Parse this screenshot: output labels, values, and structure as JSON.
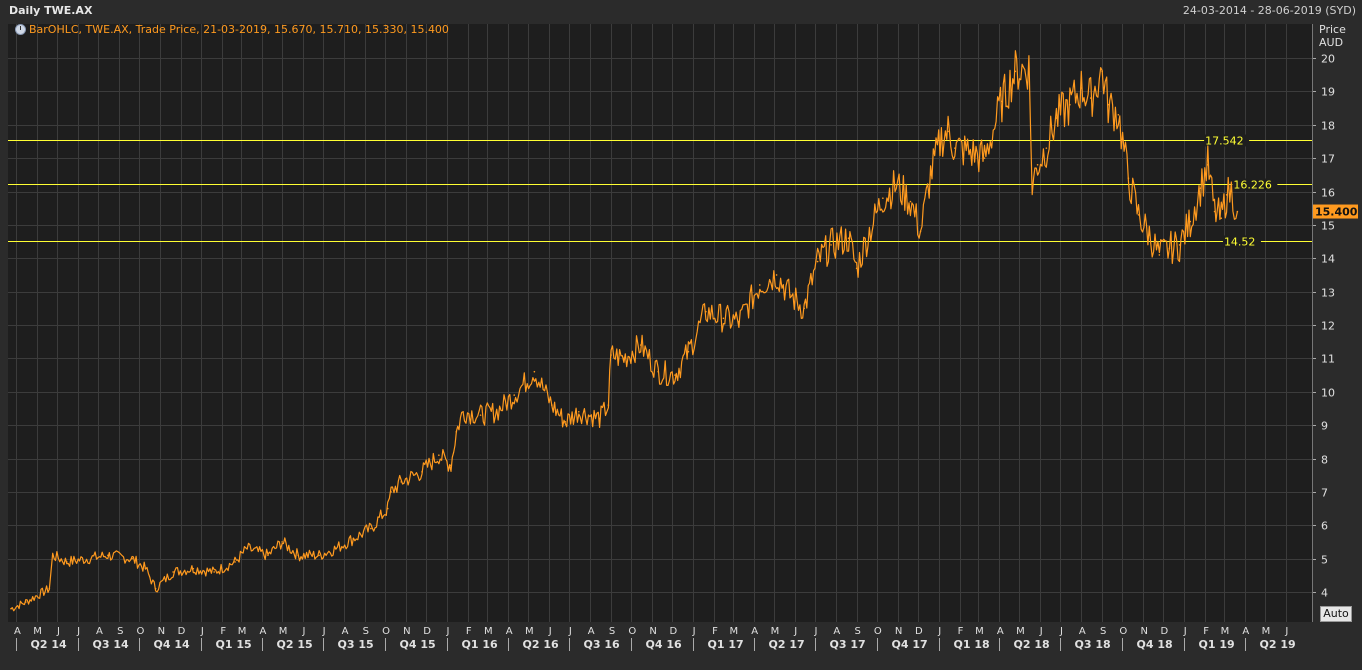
{
  "header": {
    "title": "Daily TWE.AX",
    "date_range": "24-03-2014 - 28-06-2019 (SYD)"
  },
  "legend": {
    "text": "BarOHLC, TWE.AX, Trade Price,  21-03-2019,  15.670,  15.710,  15.330,  15.400",
    "icon": "clock-icon"
  },
  "axis": {
    "price_label": "Price",
    "currency_label": "AUD",
    "auto_button": "Auto"
  },
  "colors": {
    "background": "#1e1e1e",
    "grid": "#3c3c3c",
    "series": "#ff9a1f",
    "hline": "#ffff33",
    "last_price_bg": "#ff9a1f"
  },
  "chart_data": {
    "type": "line",
    "title": "Daily TWE.AX",
    "series": [
      {
        "name": "TWE.AX",
        "x": [
          "2014-03-24",
          "2014-04-15",
          "2014-05-20",
          "2014-05-25",
          "2014-06-15",
          "2014-08-15",
          "2014-09-20",
          "2014-10-10",
          "2014-10-25",
          "2014-11-20",
          "2014-12-20",
          "2015-01-20",
          "2015-02-20",
          "2015-03-10",
          "2015-04-10",
          "2015-05-01",
          "2015-05-25",
          "2015-06-25",
          "2015-07-20",
          "2015-08-15",
          "2015-09-10",
          "2015-10-05",
          "2015-10-10",
          "2015-10-25",
          "2015-11-25",
          "2015-12-20",
          "2016-01-07",
          "2016-01-15",
          "2016-01-25",
          "2016-02-20",
          "2016-03-15",
          "2016-04-10",
          "2016-05-10",
          "2016-06-05",
          "2016-06-25",
          "2016-07-15",
          "2016-08-15",
          "2016-08-28",
          "2016-09-01",
          "2016-09-20",
          "2016-10-15",
          "2016-11-10",
          "2016-12-05",
          "2016-12-25",
          "2017-01-20",
          "2017-02-15",
          "2017-03-10",
          "2017-04-10",
          "2017-05-05",
          "2017-05-25",
          "2017-06-15",
          "2017-07-05",
          "2017-07-25",
          "2017-08-20",
          "2017-09-01",
          "2017-09-20",
          "2017-10-10",
          "2017-10-30",
          "2017-11-20",
          "2017-12-05",
          "2017-12-20",
          "2018-01-05",
          "2018-01-15",
          "2018-01-25",
          "2018-02-15",
          "2018-03-10",
          "2018-04-05",
          "2018-04-25",
          "2018-05-15",
          "2018-05-20",
          "2018-05-28",
          "2018-06-10",
          "2018-06-25",
          "2018-07-15",
          "2018-08-01",
          "2018-08-15",
          "2018-09-01",
          "2018-09-10",
          "2018-09-25",
          "2018-10-10",
          "2018-10-25",
          "2018-11-10",
          "2018-11-25",
          "2018-12-10",
          "2018-12-25",
          "2019-01-10",
          "2019-01-25",
          "2019-02-05",
          "2019-02-15",
          "2019-02-25",
          "2019-03-05",
          "2019-03-12",
          "2019-03-21"
        ],
        "y": [
          3.5,
          3.7,
          4.1,
          5.1,
          4.9,
          5.1,
          5.0,
          4.7,
          4.1,
          4.6,
          4.7,
          4.6,
          4.9,
          5.3,
          5.1,
          5.5,
          5.1,
          5.1,
          5.3,
          5.6,
          5.9,
          6.5,
          7.0,
          7.3,
          7.6,
          8.1,
          7.8,
          8.8,
          9.4,
          9.3,
          9.4,
          9.9,
          10.6,
          9.6,
          9.1,
          9.4,
          9.2,
          9.6,
          11.1,
          11.0,
          11.4,
          10.6,
          10.5,
          11.2,
          12.4,
          12.2,
          12.1,
          13.2,
          13.5,
          12.9,
          12.5,
          13.9,
          14.4,
          14.6,
          13.7,
          14.8,
          15.8,
          16.2,
          15.7,
          14.8,
          16.5,
          17.6,
          17.8,
          17.3,
          17.2,
          17.0,
          18.7,
          19.6,
          19.7,
          16.2,
          16.8,
          17.3,
          18.2,
          18.6,
          19.1,
          18.8,
          19.6,
          18.6,
          18.3,
          16.4,
          15.3,
          14.7,
          14.1,
          14.3,
          14.4,
          15.1,
          16.1,
          16.8,
          15.4,
          15.2,
          15.9,
          16.0,
          15.4
        ]
      }
    ],
    "y_axis": {
      "label": "Price",
      "unit": "AUD",
      "range": [
        3,
        20.5
      ],
      "ticks": [
        4,
        5,
        6,
        7,
        8,
        9,
        10,
        11,
        12,
        13,
        14,
        15,
        16,
        17,
        18,
        19,
        20
      ]
    },
    "x_axis": {
      "range": [
        "2014-03-24",
        "2019-06-28"
      ],
      "months": [
        {
          "label": "A",
          "date": "2014-04-01"
        },
        {
          "label": "M",
          "date": "2014-05-01"
        },
        {
          "label": "J",
          "date": "2014-06-01"
        },
        {
          "label": "J",
          "date": "2014-07-01"
        },
        {
          "label": "A",
          "date": "2014-08-01"
        },
        {
          "label": "S",
          "date": "2014-09-01"
        },
        {
          "label": "O",
          "date": "2014-10-01"
        },
        {
          "label": "N",
          "date": "2014-11-01"
        },
        {
          "label": "D",
          "date": "2014-12-01"
        },
        {
          "label": "J",
          "date": "2015-01-01"
        },
        {
          "label": "F",
          "date": "2015-02-01"
        },
        {
          "label": "M",
          "date": "2015-03-01"
        },
        {
          "label": "A",
          "date": "2015-04-01"
        },
        {
          "label": "M",
          "date": "2015-05-01"
        },
        {
          "label": "J",
          "date": "2015-06-01"
        },
        {
          "label": "J",
          "date": "2015-07-01"
        },
        {
          "label": "A",
          "date": "2015-08-01"
        },
        {
          "label": "S",
          "date": "2015-09-01"
        },
        {
          "label": "O",
          "date": "2015-10-01"
        },
        {
          "label": "N",
          "date": "2015-11-01"
        },
        {
          "label": "D",
          "date": "2015-12-01"
        },
        {
          "label": "J",
          "date": "2016-01-01"
        },
        {
          "label": "F",
          "date": "2016-02-01"
        },
        {
          "label": "M",
          "date": "2016-03-01"
        },
        {
          "label": "A",
          "date": "2016-04-01"
        },
        {
          "label": "M",
          "date": "2016-05-01"
        },
        {
          "label": "J",
          "date": "2016-06-01"
        },
        {
          "label": "J",
          "date": "2016-07-01"
        },
        {
          "label": "A",
          "date": "2016-08-01"
        },
        {
          "label": "S",
          "date": "2016-09-01"
        },
        {
          "label": "O",
          "date": "2016-10-01"
        },
        {
          "label": "N",
          "date": "2016-11-01"
        },
        {
          "label": "D",
          "date": "2016-12-01"
        },
        {
          "label": "J",
          "date": "2017-01-01"
        },
        {
          "label": "F",
          "date": "2017-02-01"
        },
        {
          "label": "M",
          "date": "2017-03-01"
        },
        {
          "label": "A",
          "date": "2017-04-01"
        },
        {
          "label": "M",
          "date": "2017-05-01"
        },
        {
          "label": "J",
          "date": "2017-06-01"
        },
        {
          "label": "J",
          "date": "2017-07-01"
        },
        {
          "label": "A",
          "date": "2017-08-01"
        },
        {
          "label": "S",
          "date": "2017-09-01"
        },
        {
          "label": "O",
          "date": "2017-10-01"
        },
        {
          "label": "N",
          "date": "2017-11-01"
        },
        {
          "label": "D",
          "date": "2017-12-01"
        },
        {
          "label": "J",
          "date": "2018-01-01"
        },
        {
          "label": "F",
          "date": "2018-02-01"
        },
        {
          "label": "M",
          "date": "2018-03-01"
        },
        {
          "label": "A",
          "date": "2018-04-01"
        },
        {
          "label": "M",
          "date": "2018-05-01"
        },
        {
          "label": "J",
          "date": "2018-06-01"
        },
        {
          "label": "J",
          "date": "2018-07-01"
        },
        {
          "label": "A",
          "date": "2018-08-01"
        },
        {
          "label": "S",
          "date": "2018-09-01"
        },
        {
          "label": "O",
          "date": "2018-10-01"
        },
        {
          "label": "N",
          "date": "2018-11-01"
        },
        {
          "label": "D",
          "date": "2018-12-01"
        },
        {
          "label": "J",
          "date": "2019-01-01"
        },
        {
          "label": "F",
          "date": "2019-02-01"
        },
        {
          "label": "M",
          "date": "2019-03-01"
        },
        {
          "label": "A",
          "date": "2019-04-01"
        },
        {
          "label": "M",
          "date": "2019-05-01"
        },
        {
          "label": "J",
          "date": "2019-06-01"
        }
      ],
      "quarters": [
        {
          "label": "Q2 14",
          "date": "2014-04-01"
        },
        {
          "label": "Q3 14",
          "date": "2014-07-01"
        },
        {
          "label": "Q4 14",
          "date": "2014-10-01"
        },
        {
          "label": "Q1 15",
          "date": "2015-01-01"
        },
        {
          "label": "Q2 15",
          "date": "2015-04-01"
        },
        {
          "label": "Q3 15",
          "date": "2015-07-01"
        },
        {
          "label": "Q4 15",
          "date": "2015-10-01"
        },
        {
          "label": "Q1 16",
          "date": "2016-01-01"
        },
        {
          "label": "Q2 16",
          "date": "2016-04-01"
        },
        {
          "label": "Q3 16",
          "date": "2016-07-01"
        },
        {
          "label": "Q4 16",
          "date": "2016-10-01"
        },
        {
          "label": "Q1 17",
          "date": "2017-01-01"
        },
        {
          "label": "Q2 17",
          "date": "2017-04-01"
        },
        {
          "label": "Q3 17",
          "date": "2017-07-01"
        },
        {
          "label": "Q4 17",
          "date": "2017-10-01"
        },
        {
          "label": "Q1 18",
          "date": "2018-01-01"
        },
        {
          "label": "Q2 18",
          "date": "2018-04-01"
        },
        {
          "label": "Q3 18",
          "date": "2018-07-01"
        },
        {
          "label": "Q4 18",
          "date": "2018-10-01"
        },
        {
          "label": "Q1 19",
          "date": "2019-01-01"
        },
        {
          "label": "Q2 19",
          "date": "2019-04-01"
        }
      ]
    },
    "horizontal_lines": [
      {
        "value": 17.542,
        "label": "17.542",
        "label_date": "2019-02-01"
      },
      {
        "value": 16.226,
        "label": "16.226",
        "label_date": "2019-03-15"
      },
      {
        "value": 14.52,
        "label": "14.52",
        "label_date": "2019-03-01"
      }
    ],
    "last_price": {
      "value": 15.4,
      "label": "15.400"
    },
    "grid": true
  }
}
